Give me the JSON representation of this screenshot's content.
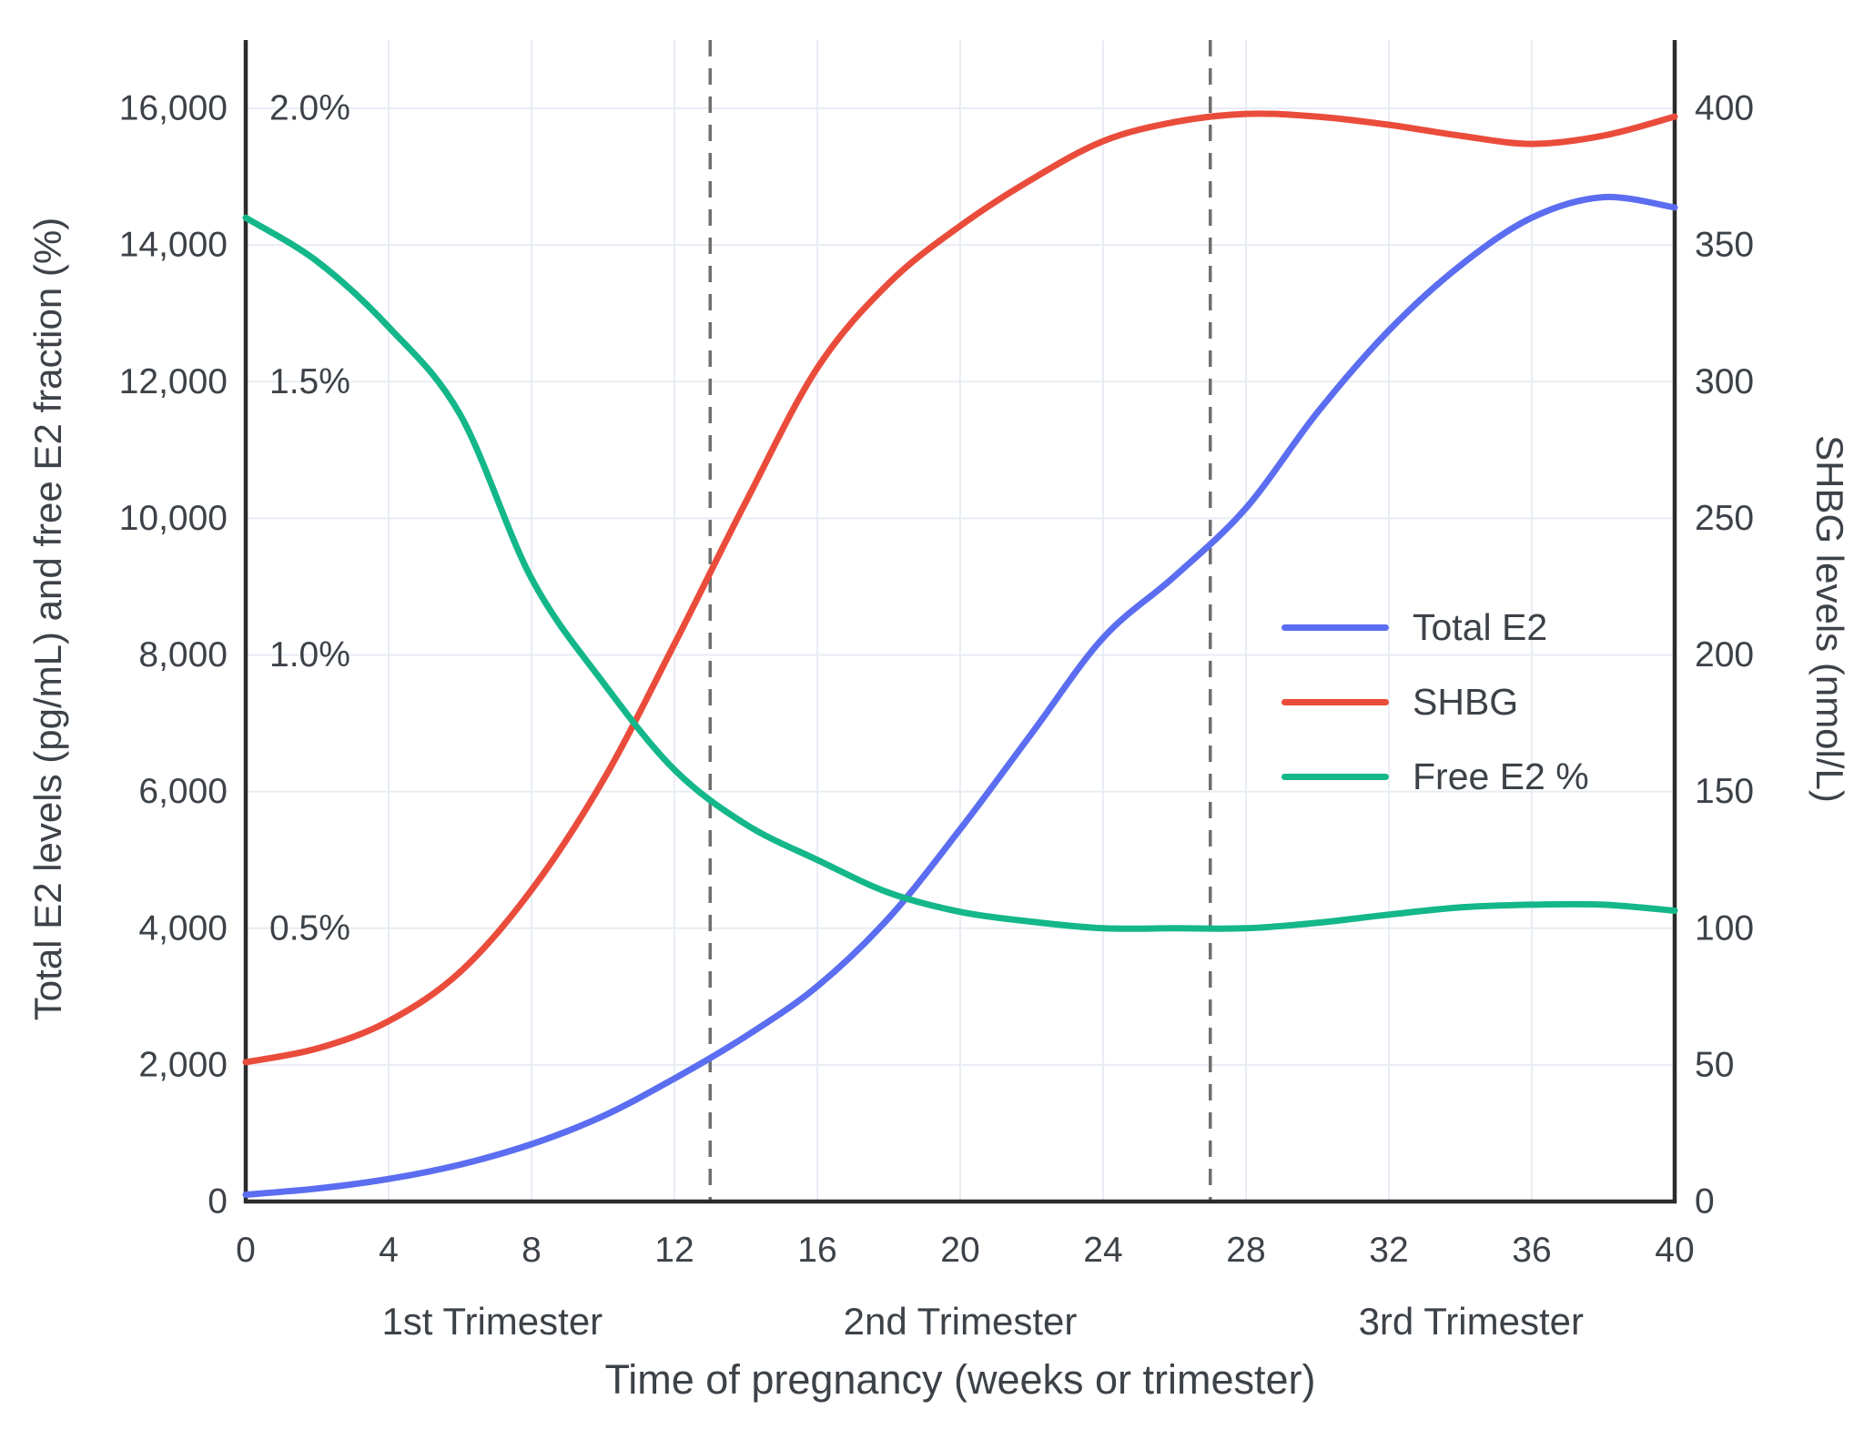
{
  "chart_data": {
    "type": "line",
    "title": "",
    "xlabel": "Time of pregnancy (weeks or trimester)",
    "ylabel_left": "Total E2 levels (pg/mL) and free E2 fraction (%)",
    "ylabel_right": "SHBG levels (nmol/L)",
    "x_range": [
      0,
      40
    ],
    "y_left_range": [
      0,
      17000
    ],
    "y_right_range": [
      0,
      425
    ],
    "y_percent_range": [
      0,
      2.125
    ],
    "grid": true,
    "legend_position": "center-right",
    "x_ticks": [
      {
        "value": 0,
        "label": "0"
      },
      {
        "value": 4,
        "label": "4"
      },
      {
        "value": 8,
        "label": "8"
      },
      {
        "value": 12,
        "label": "12"
      },
      {
        "value": 16,
        "label": "16"
      },
      {
        "value": 20,
        "label": "20"
      },
      {
        "value": 24,
        "label": "24"
      },
      {
        "value": 28,
        "label": "28"
      },
      {
        "value": 32,
        "label": "32"
      },
      {
        "value": 36,
        "label": "36"
      },
      {
        "value": 40,
        "label": "40"
      }
    ],
    "y_left_ticks": [
      {
        "value": 0,
        "label": "0"
      },
      {
        "value": 2000,
        "label": "2,000"
      },
      {
        "value": 4000,
        "label": "4,000"
      },
      {
        "value": 6000,
        "label": "6,000"
      },
      {
        "value": 8000,
        "label": "8,000"
      },
      {
        "value": 10000,
        "label": "10,000"
      },
      {
        "value": 12000,
        "label": "12,000"
      },
      {
        "value": 14000,
        "label": "14,000"
      },
      {
        "value": 16000,
        "label": "16,000"
      }
    ],
    "percent_ticks": [
      {
        "value": 4000,
        "label": "0.5%"
      },
      {
        "value": 8000,
        "label": "1.0%"
      },
      {
        "value": 12000,
        "label": "1.5%"
      },
      {
        "value": 16000,
        "label": "2.0%"
      }
    ],
    "y_right_ticks": [
      {
        "value": 0,
        "label": "0"
      },
      {
        "value": 50,
        "label": "50"
      },
      {
        "value": 100,
        "label": "100"
      },
      {
        "value": 150,
        "label": "150"
      },
      {
        "value": 200,
        "label": "200"
      },
      {
        "value": 250,
        "label": "250"
      },
      {
        "value": 300,
        "label": "300"
      },
      {
        "value": 350,
        "label": "350"
      },
      {
        "value": 400,
        "label": "400"
      }
    ],
    "weeks": [
      0,
      2,
      4,
      6,
      8,
      10,
      12,
      14,
      16,
      18,
      20,
      22,
      24,
      26,
      28,
      30,
      32,
      34,
      36,
      38,
      40
    ],
    "series": [
      {
        "name": "Total E2",
        "axis": "left",
        "unit": "pg/mL",
        "color": "#5b6df0",
        "values": [
          100,
          190,
          330,
          540,
          840,
          1250,
          1800,
          2420,
          3150,
          4150,
          5450,
          6850,
          8250,
          9150,
          10150,
          11550,
          12750,
          13700,
          14400,
          14700,
          14550
        ]
      },
      {
        "name": "SHBG",
        "axis": "right",
        "unit": "nmol/L",
        "color": "#ea4c3b",
        "values": [
          51,
          56,
          66,
          84,
          114,
          154,
          204,
          256,
          305,
          336,
          357,
          374,
          388,
          395,
          398,
          397,
          394,
          390,
          387,
          390,
          397
        ]
      },
      {
        "name": "Free E2 %",
        "axis": "percent",
        "unit": "%",
        "color": "#14b789",
        "values": [
          1.8,
          1.72,
          1.6,
          1.44,
          1.14,
          0.95,
          0.79,
          0.69,
          0.625,
          0.565,
          0.53,
          0.512,
          0.5,
          0.5,
          0.5,
          0.51,
          0.525,
          0.538,
          0.543,
          0.543,
          0.532
        ]
      }
    ],
    "trimester_divider_weeks": [
      13,
      27
    ],
    "trimester_labels": [
      {
        "label": "1st Trimester",
        "week": 6.9
      },
      {
        "label": "2nd Trimester",
        "week": 20
      },
      {
        "label": "3rd Trimester",
        "week": 34.3
      }
    ],
    "colors": {
      "grid": "#e8edf4",
      "axis": "#2b2b2b",
      "dashed": "#6f6f6f",
      "text": "#3d4248"
    }
  }
}
